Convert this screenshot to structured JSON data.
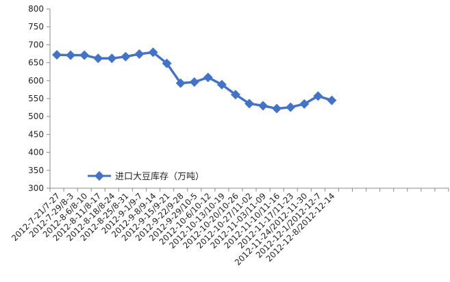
{
  "chart_data": {
    "type": "line",
    "title": "",
    "xlabel": "",
    "ylabel": "",
    "ylim": [
      300,
      800
    ],
    "ytick_step": 50,
    "grid": false,
    "legend_position": "bottom-left",
    "categories": [
      "2012-7-21/7-27",
      "2012-7-29/8-3",
      "2012-8-6/8-10",
      "2012-8-11/8-17",
      "2012-8-18/8-24",
      "2012-8-25/8-31",
      "2012-9-1/9-7",
      "2012-9-8/9-14",
      "2012-9-15/9-21",
      "2012-9-22/9-28",
      "2012-9-29/10-5",
      "2012-10-6/10-12",
      "2012-10-13/10-19",
      "2012-10-20/10-26",
      "2012-10-27/11-02",
      "2012-11-03/11-09",
      "2012-11-10/11-16",
      "2012-11-17/11-23",
      "2012-11-24/2012-11-30",
      "2012-12-1/2012-12-7",
      "2012-12-8/2012-12-14"
    ],
    "series": [
      {
        "name": "进口大豆库存（万吨）",
        "color": "#4472c4",
        "marker": "diamond",
        "values": [
          672,
          671,
          671,
          662,
          662,
          667,
          674,
          679,
          648,
          593,
          596,
          609,
          589,
          561,
          536,
          530,
          522,
          526,
          535,
          557,
          545
        ]
      }
    ]
  }
}
